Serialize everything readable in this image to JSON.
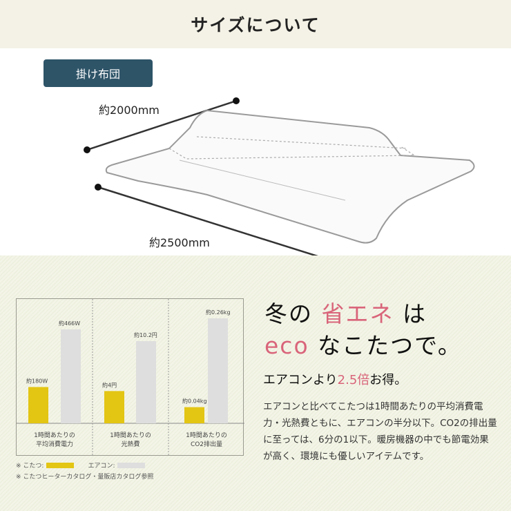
{
  "header": {
    "title": "サイズについて"
  },
  "size": {
    "badge": "掛け布団",
    "width_label": "約2000mm",
    "length_label": "約2500mm"
  },
  "chart_data": {
    "type": "bar",
    "categories": [
      "1時間あたりの\n平均消費電力",
      "1時間あたりの\n光熱費",
      "1時間あたりの\nCO2排出量"
    ],
    "series": [
      {
        "name": "こたつ",
        "color": "#e3c514",
        "values": [
          180,
          4,
          0.04
        ],
        "labels": [
          "約180W",
          "約4円",
          "約0.04kg"
        ]
      },
      {
        "name": "エアコン",
        "color": "#dedede",
        "values": [
          466,
          10.2,
          0.26
        ],
        "labels": [
          "約466W",
          "約10.2円",
          "約0.26kg"
        ]
      }
    ],
    "category_lines": [
      [
        "1時間あたりの",
        "平均消費電力"
      ],
      [
        "1時間あたりの",
        "光熱費"
      ],
      [
        "1時間あたりの",
        "CO2排出量"
      ]
    ]
  },
  "legend": {
    "kotatsu": "※ こたつ:",
    "aircon": "エアコン:",
    "note": "※ こたつヒーターカタログ・量販店カタログ参照"
  },
  "headline": {
    "l1a": "冬の",
    "l1b": "省エネ",
    "l1c": "は",
    "l2a": "eco",
    "l2b": "なこたつで。"
  },
  "subhead": {
    "a": "エアコンより",
    "b": "2.5倍",
    "c": "お得。"
  },
  "body": "エアコンと比べてこたつは1時間あたりの平均消費電力・光熱費ともに、エアコンの半分以下。CO2の排出量に至っては、6分の1以下。暖房機器の中でも節電効果が高く、環境にも優しいアイテムです。",
  "colors": {
    "accent": "#d9647a",
    "badge": "#2e5468"
  }
}
